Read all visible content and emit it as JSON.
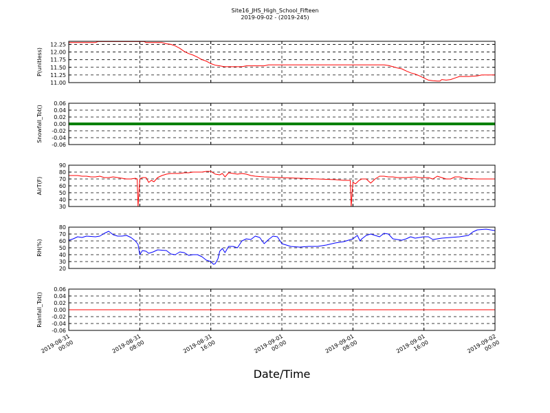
{
  "chart_data": {
    "type": "line",
    "title": "Site16_JHS_High_School_Fifteen",
    "subtitle": "2019-09-02 - (2019-245)",
    "xlabel": "Date/Time",
    "grid": true,
    "x_ticks": [
      {
        "line1": "2019-08-31",
        "line2": "00:00",
        "hours": 0
      },
      {
        "line1": "2019-08-31",
        "line2": "08:00",
        "hours": 8
      },
      {
        "line1": "2019-08-31",
        "line2": "16:00",
        "hours": 16
      },
      {
        "line1": "2019-09-01",
        "line2": "00:00",
        "hours": 24
      },
      {
        "line1": "2019-09-01",
        "line2": "08:00",
        "hours": 32
      },
      {
        "line1": "2019-09-01",
        "line2": "16:00",
        "hours": 40
      },
      {
        "line1": "2019-09-02",
        "line2": "00:00",
        "hours": 48
      }
    ],
    "panels": [
      {
        "ylabel": "P(unitless)",
        "ylim": [
          11.0,
          12.35
        ],
        "yticks": [
          "11.00",
          "11.25",
          "11.50",
          "11.75",
          "12.00",
          "12.25"
        ],
        "color": "#ff0000",
        "style": "line",
        "points": [
          [
            0,
            12.31
          ],
          [
            3,
            12.31
          ],
          [
            3.3,
            12.34
          ],
          [
            8,
            12.34
          ],
          [
            8.5,
            12.34
          ],
          [
            8.7,
            12.31
          ],
          [
            10.5,
            12.31
          ],
          [
            11,
            12.27
          ],
          [
            11.5,
            12.25
          ],
          [
            12,
            12.2
          ],
          [
            12.5,
            12.12
          ],
          [
            13,
            12.02
          ],
          [
            13.5,
            11.95
          ],
          [
            14,
            11.9
          ],
          [
            14.5,
            11.83
          ],
          [
            15,
            11.75
          ],
          [
            15.5,
            11.7
          ],
          [
            16,
            11.62
          ],
          [
            16.5,
            11.57
          ],
          [
            17,
            11.55
          ],
          [
            17.5,
            11.52
          ],
          [
            18,
            11.52
          ],
          [
            19,
            11.52
          ],
          [
            19.5,
            11.52
          ],
          [
            20,
            11.55
          ],
          [
            22,
            11.55
          ],
          [
            22.5,
            11.58
          ],
          [
            24,
            11.58
          ],
          [
            26,
            11.58
          ],
          [
            28,
            11.58
          ],
          [
            30,
            11.58
          ],
          [
            32,
            11.58
          ],
          [
            34,
            11.58
          ],
          [
            35.5,
            11.58
          ],
          [
            36,
            11.56
          ],
          [
            36.5,
            11.52
          ],
          [
            37,
            11.48
          ],
          [
            37.5,
            11.45
          ],
          [
            38,
            11.38
          ],
          [
            38.5,
            11.32
          ],
          [
            39,
            11.28
          ],
          [
            39.5,
            11.22
          ],
          [
            40,
            11.15
          ],
          [
            40.5,
            11.08
          ],
          [
            41,
            11.06
          ],
          [
            41.5,
            11.05
          ],
          [
            41.8,
            11.05
          ],
          [
            42,
            11.1
          ],
          [
            42.5,
            11.08
          ],
          [
            43,
            11.1
          ],
          [
            43.5,
            11.15
          ],
          [
            44,
            11.2
          ],
          [
            45,
            11.2
          ],
          [
            46,
            11.22
          ],
          [
            46.5,
            11.25
          ],
          [
            48,
            11.25
          ]
        ]
      },
      {
        "ylabel": "Snowfall_Tot()",
        "ylim": [
          -0.06,
          0.06
        ],
        "yticks": [
          "-0.06",
          "-0.04",
          "-0.02",
          "0.00",
          "0.02",
          "0.04",
          "0.06"
        ],
        "color": "#008000",
        "style": "thick",
        "points": [
          [
            0,
            0
          ],
          [
            48,
            0
          ]
        ]
      },
      {
        "ylabel": "AirT(F)",
        "ylim": [
          30,
          90
        ],
        "yticks": [
          "30",
          "40",
          "50",
          "60",
          "70",
          "80",
          "90"
        ],
        "color": "#ff0000",
        "style": "line",
        "points": [
          [
            0,
            75
          ],
          [
            1,
            75
          ],
          [
            1.5,
            74
          ],
          [
            2,
            74
          ],
          [
            2.5,
            73
          ],
          [
            3,
            73
          ],
          [
            3.5,
            74
          ],
          [
            4,
            72
          ],
          [
            4.5,
            72
          ],
          [
            5,
            73
          ],
          [
            6,
            71
          ],
          [
            6.5,
            70
          ],
          [
            7,
            70
          ],
          [
            7.5,
            71
          ],
          [
            7.7,
            70
          ],
          [
            7.8,
            30
          ],
          [
            8.0,
            70
          ],
          [
            8.3,
            72
          ],
          [
            8.7,
            72
          ],
          [
            9,
            65
          ],
          [
            9.3,
            68
          ],
          [
            9.6,
            66
          ],
          [
            10,
            72
          ],
          [
            10.5,
            75
          ],
          [
            11,
            77
          ],
          [
            11.5,
            78
          ],
          [
            12,
            78
          ],
          [
            12.5,
            78
          ],
          [
            13,
            79
          ],
          [
            13.5,
            79
          ],
          [
            14,
            80
          ],
          [
            14.5,
            80
          ],
          [
            15,
            80
          ],
          [
            15.5,
            81
          ],
          [
            16,
            81
          ],
          [
            16.5,
            77
          ],
          [
            17,
            76
          ],
          [
            17.3,
            78
          ],
          [
            17.6,
            73
          ],
          [
            18,
            79
          ],
          [
            18.5,
            78
          ],
          [
            19,
            77
          ],
          [
            19.5,
            78
          ],
          [
            20,
            77
          ],
          [
            20.5,
            75
          ],
          [
            21,
            74
          ],
          [
            22,
            73
          ],
          [
            24,
            72
          ],
          [
            26,
            71
          ],
          [
            28,
            70
          ],
          [
            30,
            69
          ],
          [
            31,
            68
          ],
          [
            31.5,
            68
          ],
          [
            31.7,
            68
          ],
          [
            31.8,
            30
          ],
          [
            32.0,
            65
          ],
          [
            32.3,
            63
          ],
          [
            32.7,
            68
          ],
          [
            33,
            70
          ],
          [
            33.5,
            70
          ],
          [
            34,
            64
          ],
          [
            34.5,
            70
          ],
          [
            35,
            74
          ],
          [
            35.5,
            74
          ],
          [
            36,
            73
          ],
          [
            36.5,
            73
          ],
          [
            37,
            72
          ],
          [
            38,
            72
          ],
          [
            39,
            73
          ],
          [
            39.5,
            72
          ],
          [
            40,
            72
          ],
          [
            40.5,
            72
          ],
          [
            41,
            70
          ],
          [
            41.5,
            74
          ],
          [
            42,
            72
          ],
          [
            42.5,
            70
          ],
          [
            43,
            70
          ],
          [
            43.5,
            73
          ],
          [
            44,
            73
          ],
          [
            44.5,
            71
          ],
          [
            46,
            70
          ],
          [
            48,
            70
          ]
        ]
      },
      {
        "ylabel": "RH(%)",
        "ylim": [
          20,
          80
        ],
        "yticks": [
          "20",
          "30",
          "40",
          "50",
          "60",
          "70",
          "80"
        ],
        "color": "#0000ff",
        "style": "line",
        "points": [
          [
            0,
            61
          ],
          [
            0.5,
            63
          ],
          [
            1,
            66
          ],
          [
            1.5,
            65
          ],
          [
            2,
            67
          ],
          [
            3,
            66
          ],
          [
            3.5,
            67
          ],
          [
            4,
            71
          ],
          [
            4.5,
            74
          ],
          [
            5,
            69
          ],
          [
            5.5,
            67
          ],
          [
            6,
            67
          ],
          [
            6.5,
            68
          ],
          [
            7,
            65
          ],
          [
            7.5,
            60
          ],
          [
            7.8,
            55
          ],
          [
            8,
            40
          ],
          [
            8.3,
            46
          ],
          [
            8.7,
            45
          ],
          [
            9,
            42
          ],
          [
            9.5,
            44
          ],
          [
            10,
            47
          ],
          [
            11,
            46
          ],
          [
            11.5,
            41
          ],
          [
            12,
            40
          ],
          [
            12.5,
            44
          ],
          [
            13,
            43
          ],
          [
            13.5,
            39
          ],
          [
            14,
            40
          ],
          [
            14.5,
            40
          ],
          [
            15,
            37
          ],
          [
            15.5,
            32
          ],
          [
            16,
            30
          ],
          [
            16.3,
            26
          ],
          [
            16.5,
            27
          ],
          [
            16.8,
            34
          ],
          [
            17,
            45
          ],
          [
            17.3,
            49
          ],
          [
            17.6,
            43
          ],
          [
            18,
            52
          ],
          [
            18.5,
            52
          ],
          [
            19,
            50
          ],
          [
            19.5,
            60
          ],
          [
            20,
            63
          ],
          [
            20.5,
            62
          ],
          [
            21,
            67
          ],
          [
            21.5,
            65
          ],
          [
            22,
            56
          ],
          [
            22.5,
            62
          ],
          [
            23,
            67
          ],
          [
            23.5,
            66
          ],
          [
            24,
            56
          ],
          [
            24.5,
            54
          ],
          [
            25,
            52
          ],
          [
            26,
            51
          ],
          [
            27,
            52
          ],
          [
            28,
            52
          ],
          [
            29,
            54
          ],
          [
            30,
            57
          ],
          [
            31,
            59
          ],
          [
            32,
            63
          ],
          [
            32.5,
            68
          ],
          [
            32.8,
            60
          ],
          [
            33,
            63
          ],
          [
            33.5,
            68
          ],
          [
            34,
            70
          ],
          [
            34.5,
            68
          ],
          [
            35,
            66
          ],
          [
            35.5,
            71
          ],
          [
            36,
            70
          ],
          [
            36.5,
            63
          ],
          [
            37,
            62
          ],
          [
            37.5,
            61
          ],
          [
            38,
            63
          ],
          [
            38.5,
            66
          ],
          [
            39,
            64
          ],
          [
            39.5,
            65
          ],
          [
            40,
            66
          ],
          [
            40.5,
            66
          ],
          [
            41,
            62
          ],
          [
            41.5,
            63
          ],
          [
            42,
            64
          ],
          [
            43,
            65
          ],
          [
            44,
            66
          ],
          [
            45,
            68
          ],
          [
            45.5,
            73
          ],
          [
            46,
            76
          ],
          [
            47,
            77
          ],
          [
            48,
            75
          ]
        ]
      },
      {
        "ylabel": "Rainfall_Tot()",
        "ylim": [
          -0.06,
          0.06
        ],
        "yticks": [
          "-0.06",
          "-0.04",
          "-0.02",
          "0.00",
          "0.02",
          "0.04",
          "0.06"
        ],
        "color": "#ff0000",
        "style": "line",
        "points": [
          [
            0,
            0
          ],
          [
            48,
            0
          ]
        ]
      }
    ]
  }
}
